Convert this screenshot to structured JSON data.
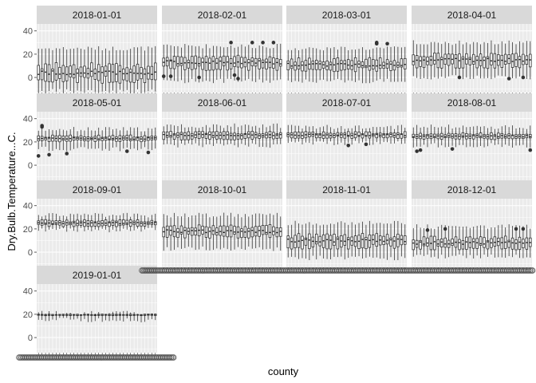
{
  "chart_data": {
    "type": "boxplot",
    "facet_by": "date",
    "xlabel": "county",
    "ylabel": "Dry.Bulb.Temperature...C.",
    "ylim": [
      -13,
      46
    ],
    "yticks": [
      0,
      20,
      40
    ],
    "grid": true,
    "facet_columns": 4,
    "x_tick_labels_overlapping": "circles",
    "colors": {
      "panel_bg": "#ebebeb",
      "grid": "#ffffff",
      "strip_bg": "#d9d9d9",
      "box_line": "#333333",
      "box_fill": "#ffffff",
      "outlier": "#333333"
    },
    "facets": [
      {
        "label": "2018-01-01",
        "n_boxes": 34,
        "median": 4,
        "q1": -2,
        "q3": 10,
        "whisker_low": -12,
        "whisker_high": 25,
        "outliers": []
      },
      {
        "label": "2018-02-01",
        "n_boxes": 34,
        "median": 13,
        "q1": 8,
        "q3": 17,
        "whisker_low": -3,
        "whisker_high": 27,
        "outliers": [
          30,
          30,
          30,
          30,
          1,
          0,
          2,
          1,
          -1
        ]
      },
      {
        "label": "2018-03-01",
        "n_boxes": 34,
        "median": 11,
        "q1": 7,
        "q3": 15,
        "whisker_low": -3,
        "whisker_high": 25,
        "outliers": [
          29,
          29,
          30
        ]
      },
      {
        "label": "2018-04-01",
        "n_boxes": 34,
        "median": 15,
        "q1": 10,
        "q3": 19,
        "whisker_low": 0,
        "whisker_high": 30,
        "outliers": [
          0,
          0,
          -1
        ]
      },
      {
        "label": "2018-05-01",
        "n_boxes": 34,
        "median": 23,
        "q1": 21,
        "q3": 25,
        "whisker_low": 14,
        "whisker_high": 31,
        "outliers": [
          34,
          33,
          11,
          10,
          12,
          9,
          8
        ]
      },
      {
        "label": "2018-06-01",
        "n_boxes": 34,
        "median": 26,
        "q1": 23,
        "q3": 28,
        "whisker_low": 17,
        "whisker_high": 34,
        "outliers": []
      },
      {
        "label": "2018-07-01",
        "n_boxes": 34,
        "median": 26,
        "q1": 24,
        "q3": 28,
        "whisker_low": 19,
        "whisker_high": 33,
        "outliers": [
          18,
          17
        ]
      },
      {
        "label": "2018-08-01",
        "n_boxes": 34,
        "median": 25,
        "q1": 23,
        "q3": 27,
        "whisker_low": 17,
        "whisker_high": 33,
        "outliers": [
          13,
          14,
          12,
          13
        ]
      },
      {
        "label": "2018-09-01",
        "n_boxes": 34,
        "median": 25,
        "q1": 23,
        "q3": 27,
        "whisker_low": 19,
        "whisker_high": 32,
        "outliers": []
      },
      {
        "label": "2018-10-01",
        "n_boxes": 34,
        "median": 18,
        "q1": 14,
        "q3": 22,
        "whisker_low": 3,
        "whisker_high": 32,
        "outliers": []
      },
      {
        "label": "2018-11-01",
        "n_boxes": 34,
        "median": 10,
        "q1": 5,
        "q3": 14,
        "whisker_low": -5,
        "whisker_high": 25,
        "outliers": []
      },
      {
        "label": "2018-12-01",
        "n_boxes": 34,
        "median": 8,
        "q1": 4,
        "q3": 12,
        "whisker_low": -4,
        "whisker_high": 22,
        "outliers": [
          19,
          20,
          20,
          20
        ]
      },
      {
        "label": "2019-01-01",
        "n_boxes": 34,
        "median": 19,
        "q1": 19,
        "q3": 20,
        "whisker_low": 15,
        "whisker_high": 21,
        "outliers": []
      }
    ]
  }
}
